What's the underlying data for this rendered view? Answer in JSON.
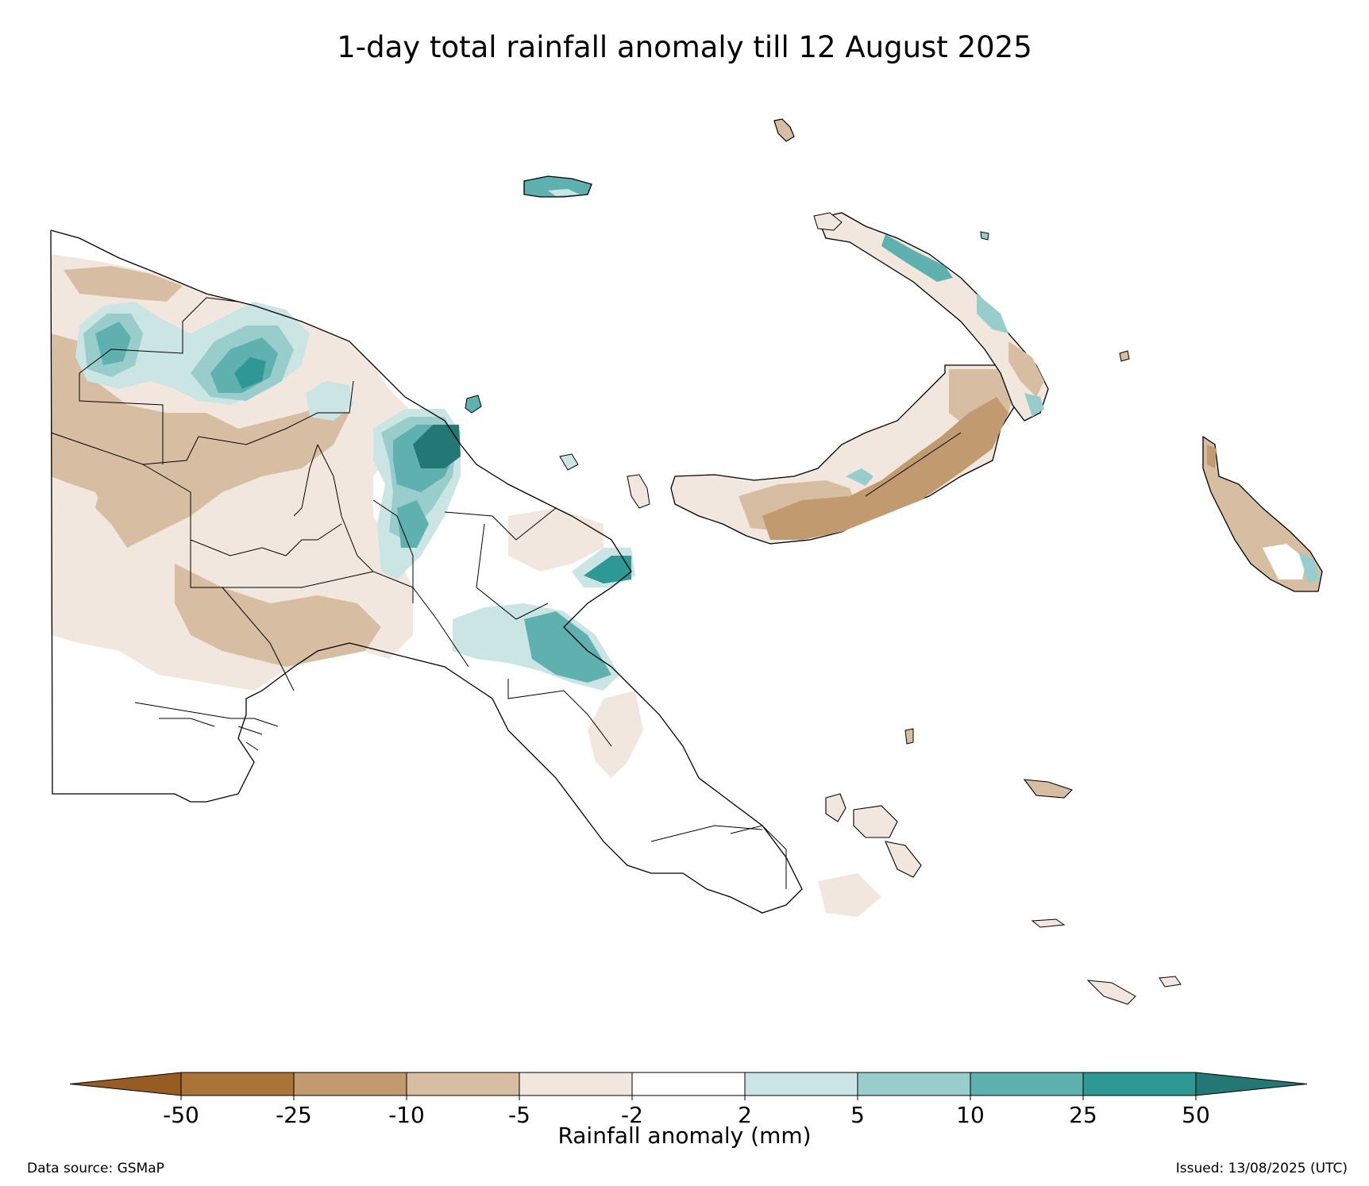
{
  "title": "1-day total rainfall anomaly till 12 August 2025",
  "colorbar": {
    "label": "Rainfall anomaly (mm)",
    "ticks": [
      "-50",
      "-25",
      "-10",
      "-5",
      "-2",
      "2",
      "5",
      "10",
      "25",
      "50"
    ],
    "under_color": "#965c24",
    "over_color": "#237775",
    "colors": [
      "#ac7339",
      "#c29a6f",
      "#d7bea3",
      "#f1e7df",
      "#ffffff",
      "#cbe5e5",
      "#98cdcc",
      "#5fb1b0",
      "#2d9894"
    ]
  },
  "source_note": "Data source: GSMaP",
  "issued_note": "Issued: 13/08/2025 (UTC)",
  "map": {
    "region": "Papua New Guinea",
    "fills": {
      "brown_light": "#f1e7df",
      "brown_mid": "#d7bea3",
      "brown_dark": "#c29a6f",
      "teal_light": "#cbe5e5",
      "teal_mid": "#98cdcc",
      "teal_strong": "#5fb1b0",
      "teal_dark": "#2d9894",
      "teal_max": "#237775"
    }
  }
}
